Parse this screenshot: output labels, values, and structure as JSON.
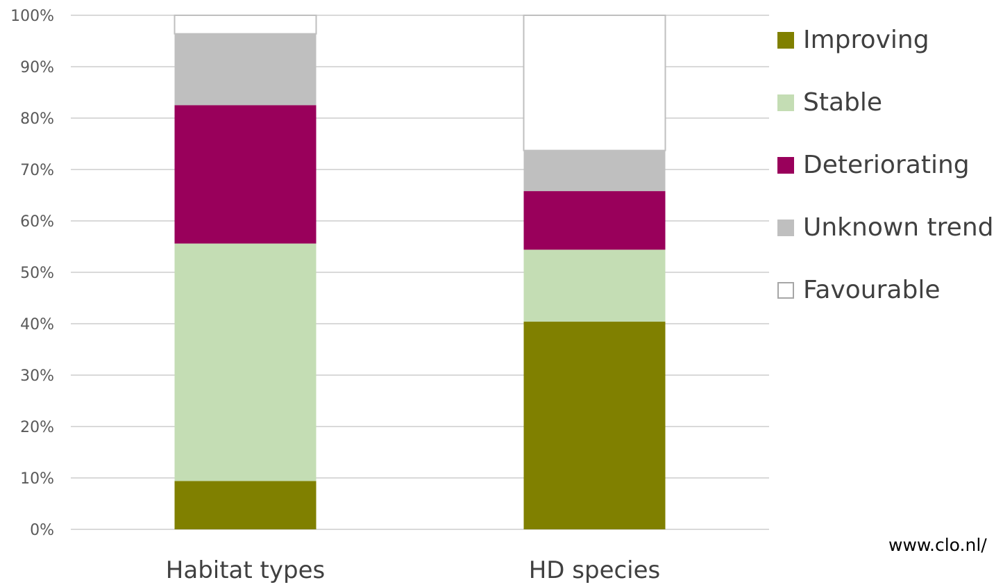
{
  "chart_data": {
    "type": "bar",
    "stacked": true,
    "normalized": true,
    "categories": [
      "Habitat types",
      "HD species"
    ],
    "series": [
      {
        "name": "Improving",
        "color": "#808000",
        "values": [
          9.4,
          40.4
        ]
      },
      {
        "name": "Stable",
        "color": "#C4DDB4",
        "values": [
          46.2,
          14.0
        ]
      },
      {
        "name": "Deteriorating",
        "color": "#99005B",
        "values": [
          26.9,
          11.4
        ]
      },
      {
        "name": "Unknown trend",
        "color": "#BFBFBF",
        "values": [
          13.9,
          7.9
        ]
      },
      {
        "name": "Favourable",
        "color": "#FFFFFF",
        "values": [
          3.6,
          26.3
        ]
      }
    ],
    "ylim": [
      0,
      100
    ],
    "y_ticks": [
      "0%",
      "10%",
      "20%",
      "30%",
      "40%",
      "50%",
      "60%",
      "70%",
      "80%",
      "90%",
      "100%"
    ],
    "grid": true,
    "legend_position": "right",
    "title": "",
    "xlabel": "",
    "ylabel": ""
  },
  "colors": {
    "grid": "#D9D9D9",
    "favourable_outline": "#BFBFBF"
  },
  "source_note": "www.clo.nl/"
}
